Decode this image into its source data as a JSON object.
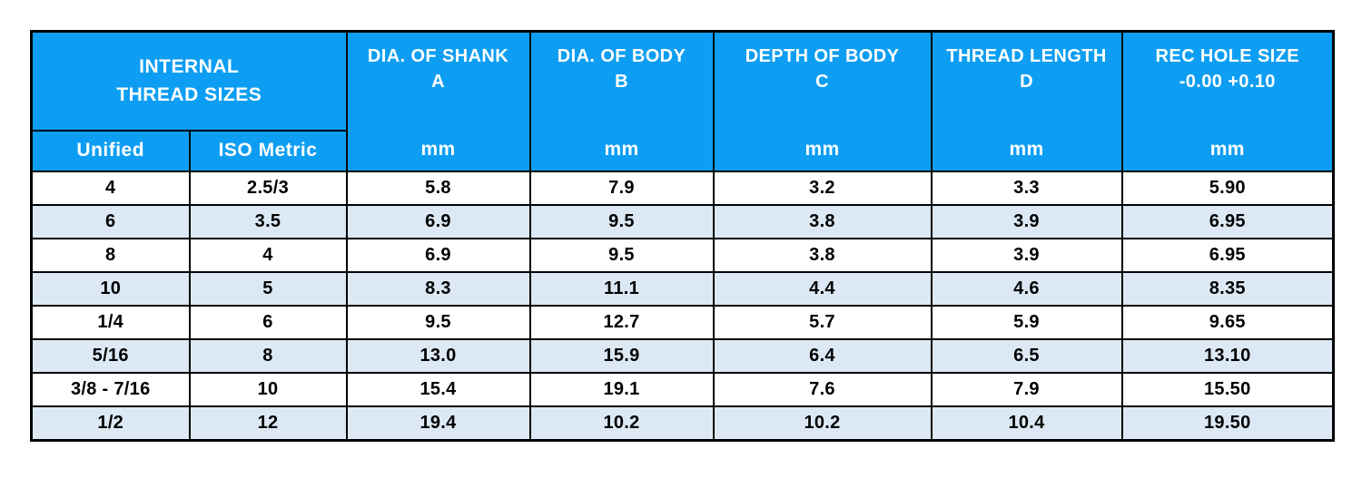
{
  "chart_data": {
    "type": "table",
    "group_header": {
      "title": "INTERNAL\nTHREAD SIZES",
      "sub_columns": [
        "Unified",
        "ISO Metric"
      ]
    },
    "columns": [
      {
        "title": "DIA. OF SHANK\nA",
        "unit": "mm"
      },
      {
        "title": "DIA. OF BODY\nB",
        "unit": "mm"
      },
      {
        "title": "DEPTH OF BODY\nC",
        "unit": "mm"
      },
      {
        "title": "THREAD LENGTH\nD",
        "unit": "mm"
      },
      {
        "title": "REC HOLE SIZE\n-0.00 +0.10",
        "unit": "mm"
      }
    ],
    "rows": [
      [
        "4",
        "2.5/3",
        "5.8",
        "7.9",
        "3.2",
        "3.3",
        "5.90"
      ],
      [
        "6",
        "3.5",
        "6.9",
        "9.5",
        "3.8",
        "3.9",
        "6.95"
      ],
      [
        "8",
        "4",
        "6.9",
        "9.5",
        "3.8",
        "3.9",
        "6.95"
      ],
      [
        "10",
        "5",
        "8.3",
        "11.1",
        "4.4",
        "4.6",
        "8.35"
      ],
      [
        "1/4",
        "6",
        "9.5",
        "12.7",
        "5.7",
        "5.9",
        "9.65"
      ],
      [
        "5/16",
        "8",
        "13.0",
        "15.9",
        "6.4",
        "6.5",
        "13.10"
      ],
      [
        "3/8 - 7/16",
        "10",
        "15.4",
        "19.1",
        "7.6",
        "7.9",
        "15.50"
      ],
      [
        "1/2",
        "12",
        "19.4",
        "10.2",
        "10.2",
        "10.4",
        "19.50"
      ]
    ]
  },
  "colors": {
    "header_bg": "#0D9EF3",
    "band_bg": "#DCE9F5",
    "border": "#000000",
    "header_text": "#FFFFFF",
    "body_text": "#000000"
  }
}
